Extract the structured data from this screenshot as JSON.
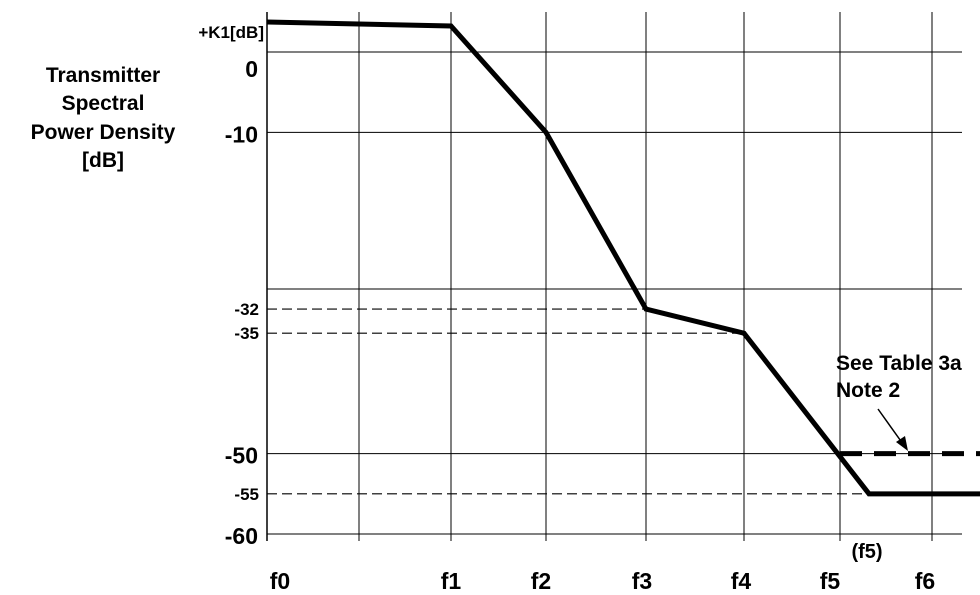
{
  "chart_data": {
    "type": "line",
    "ylabel_lines": [
      "Transmitter",
      "Spectral",
      "Power Density",
      "[dB]"
    ],
    "x_tick_labels": [
      "f0",
      "f1",
      "f2",
      "f3",
      "f4",
      "f5",
      "f6"
    ],
    "extra_x_label": "(f5)",
    "y_tick_labels": [
      {
        "value": 5,
        "label": "+K1[dB]",
        "style": "small"
      },
      {
        "value": 0,
        "label": "0",
        "style": "large"
      },
      {
        "value": -10,
        "label": "-10",
        "style": "large"
      },
      {
        "value": -32,
        "label": "-32",
        "style": "small"
      },
      {
        "value": -35,
        "label": "-35",
        "style": "small"
      },
      {
        "value": -50,
        "label": "-50",
        "style": "large"
      },
      {
        "value": -55,
        "label": "-55",
        "style": "small"
      },
      {
        "value": -60,
        "label": "-60",
        "style": "large"
      }
    ],
    "ylim": [
      -61,
      6
    ],
    "grid": true,
    "series": [
      {
        "style": "solid-thick",
        "points": [
          {
            "x": "f0",
            "y": 5
          },
          {
            "x": "f1",
            "y": 4.5
          },
          {
            "x": "f2",
            "y": -10
          },
          {
            "x": "f3",
            "y": -32
          },
          {
            "x": "f4",
            "y": -35
          },
          {
            "x": "(f5)",
            "y": -55
          },
          {
            "x": "end",
            "y": -55
          }
        ]
      },
      {
        "style": "dashed-thick",
        "points": [
          {
            "x": "f5",
            "y": -50
          },
          {
            "x": "end",
            "y": -50
          }
        ]
      }
    ],
    "reference_lines": [
      {
        "y": -32,
        "style": "dashed",
        "to": "f3"
      },
      {
        "y": -35,
        "style": "dashed",
        "to": "f4"
      },
      {
        "y": -55,
        "style": "dashed",
        "to": "(f5)"
      }
    ],
    "annotation": {
      "lines": [
        "See Table 3a",
        "Note 2"
      ],
      "arrow_target_y": -50
    }
  }
}
